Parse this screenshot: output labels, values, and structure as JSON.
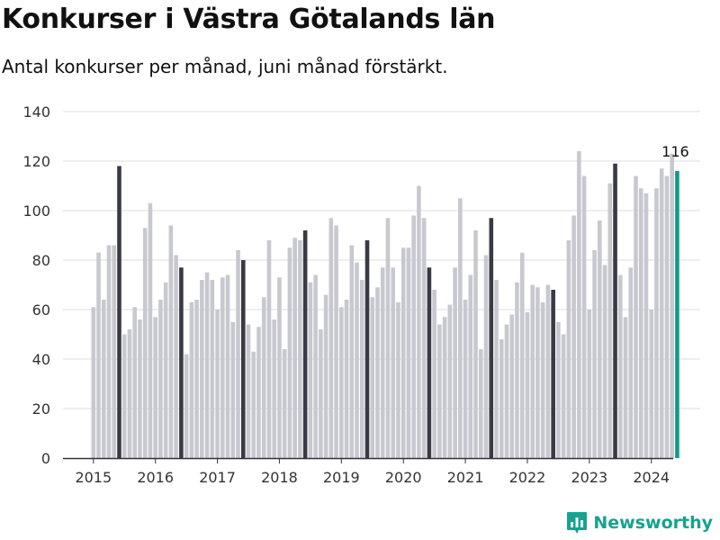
{
  "title": "Konkurser i Västra Götalands län",
  "subtitle": "Antal konkurser per månad, juni månad förstärkt.",
  "brand": "Newsworthy",
  "colors": {
    "bar": "#c8c8d0",
    "june": "#3a3a45",
    "latest": "#14998a",
    "grid": "#dddddd",
    "axis": "#333333",
    "brand": "#15a390"
  },
  "chart_data": {
    "type": "bar",
    "x_tick_labels": [
      "2015",
      "2016",
      "2017",
      "2018",
      "2019",
      "2020",
      "2021",
      "2022",
      "2023",
      "2024"
    ],
    "ylim": [
      0,
      140
    ],
    "y_ticks": [
      0,
      20,
      40,
      60,
      80,
      100,
      120,
      140
    ],
    "y_tick_labels": [
      "0",
      "20",
      "40",
      "60",
      "80",
      "100",
      "120",
      "140"
    ],
    "grid": true,
    "highlight": "June of each year",
    "annotation": {
      "label": "116",
      "month": "2024-06"
    },
    "series": [
      {
        "year": 2015,
        "values": [
          61,
          83,
          64,
          86,
          86,
          118,
          50,
          52,
          61,
          56,
          93,
          103
        ]
      },
      {
        "year": 2016,
        "values": [
          57,
          64,
          71,
          94,
          82,
          77,
          42,
          63,
          64,
          72,
          75,
          72
        ]
      },
      {
        "year": 2017,
        "values": [
          60,
          73,
          74,
          55,
          84,
          80,
          54,
          43,
          53,
          65,
          88,
          56
        ]
      },
      {
        "year": 2018,
        "values": [
          73,
          44,
          85,
          89,
          88,
          92,
          71,
          74,
          52,
          66,
          97,
          94
        ]
      },
      {
        "year": 2019,
        "values": [
          61,
          64,
          86,
          79,
          72,
          88,
          65,
          69,
          77,
          97,
          77,
          63
        ]
      },
      {
        "year": 2020,
        "values": [
          85,
          85,
          98,
          110,
          97,
          77,
          68,
          54,
          57,
          62,
          77,
          105
        ]
      },
      {
        "year": 2021,
        "values": [
          64,
          74,
          92,
          44,
          82,
          97,
          72,
          48,
          54,
          58,
          71,
          83
        ]
      },
      {
        "year": 2022,
        "values": [
          59,
          70,
          69,
          63,
          70,
          68,
          55,
          50,
          88,
          98,
          124,
          114
        ]
      },
      {
        "year": 2023,
        "values": [
          60,
          84,
          96,
          78,
          111,
          119,
          74,
          57,
          77,
          114,
          109,
          107
        ]
      },
      {
        "year": 2024,
        "values": [
          60,
          109,
          117,
          114,
          123,
          116
        ]
      }
    ]
  }
}
